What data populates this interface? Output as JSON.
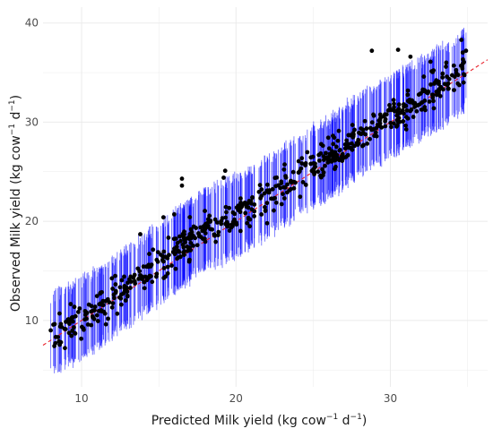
{
  "chart_data": {
    "type": "scatter",
    "title": "",
    "xlabel": {
      "pre": "Predicted Milk yield (kg cow",
      "sup1": "−1",
      "mid": " d",
      "sup2": "−1",
      "post": ")"
    },
    "ylabel": {
      "pre": "Observed Milk yield (kg cow",
      "sup1": "−1",
      "mid": " d",
      "sup2": "−1",
      "post": ")"
    },
    "xlim": [
      7.5,
      36.3
    ],
    "ylim": [
      3.3,
      41.6
    ],
    "x_ticks": [
      10,
      20,
      30
    ],
    "y_ticks": [
      10,
      20,
      30,
      40
    ],
    "grid": true,
    "reference_line": {
      "type": "identity",
      "slope": 1,
      "intercept": 0,
      "color": "#e8202a",
      "style": "dashed"
    },
    "colors": {
      "point": "#000000",
      "interval": "#0000ff",
      "grid": "#ebebeb"
    },
    "interval_half_width": 3.8,
    "seed": 7,
    "n_points": 620,
    "trend": [
      [
        8,
        8.6
      ],
      [
        10,
        10.2
      ],
      [
        12,
        12.3
      ],
      [
        14,
        14.6
      ],
      [
        15,
        15.6
      ],
      [
        16,
        16.9
      ],
      [
        18,
        19.2
      ],
      [
        20,
        20.5
      ],
      [
        22,
        22.4
      ],
      [
        24,
        24.6
      ],
      [
        26,
        26.3
      ],
      [
        28,
        28.8
      ],
      [
        30,
        30.6
      ],
      [
        32,
        32.4
      ],
      [
        34,
        34.2
      ],
      [
        35,
        35.6
      ]
    ],
    "highlighted_points": [
      {
        "x": 16.5,
        "y": 24.3
      },
      {
        "x": 16.5,
        "y": 23.6
      },
      {
        "x": 19.3,
        "y": 25.1
      },
      {
        "x": 19.2,
        "y": 24.4
      },
      {
        "x": 28.8,
        "y": 37.2
      },
      {
        "x": 30.5,
        "y": 37.3
      },
      {
        "x": 31.3,
        "y": 36.6
      },
      {
        "x": 34.6,
        "y": 38.3
      },
      {
        "x": 34.9,
        "y": 37.2
      },
      {
        "x": 13.8,
        "y": 18.7
      },
      {
        "x": 15.3,
        "y": 20.4
      },
      {
        "x": 16.0,
        "y": 20.7
      },
      {
        "x": 8.0,
        "y": 9.0
      },
      {
        "x": 8.3,
        "y": 7.7
      },
      {
        "x": 33.6,
        "y": 35.6
      },
      {
        "x": 32.6,
        "y": 36.1
      }
    ]
  }
}
